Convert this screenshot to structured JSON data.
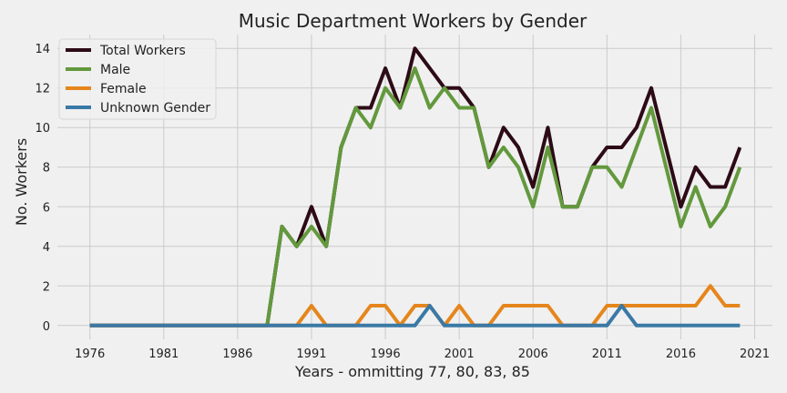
{
  "chart_data": {
    "type": "line",
    "title": "Music Department Workers by Gender",
    "xlabel": "Years - ommitting 77, 80, 83, 85",
    "ylabel": "No. Workers",
    "xlim": [
      1973.8,
      2022.2
    ],
    "ylim": [
      -0.7,
      14.7
    ],
    "xticks": [
      1976,
      1981,
      1986,
      1991,
      1996,
      2001,
      2006,
      2011,
      2016,
      2021
    ],
    "yticks": [
      0,
      2,
      4,
      6,
      8,
      10,
      12,
      14
    ],
    "grid": true,
    "legend_position": "top-left",
    "x": [
      1976,
      1977,
      1978,
      1979,
      1980,
      1981,
      1982,
      1983,
      1984,
      1985,
      1986,
      1987,
      1988,
      1989,
      1990,
      1991,
      1992,
      1993,
      1994,
      1995,
      1996,
      1997,
      1998,
      1999,
      2000,
      2001,
      2002,
      2003,
      2004,
      2005,
      2006,
      2007,
      2008,
      2009,
      2010,
      2011,
      2012,
      2013,
      2014,
      2015,
      2016,
      2017,
      2018,
      2019,
      2020
    ],
    "series": [
      {
        "name": "Total Workers",
        "color": "#2d0b16",
        "values": [
          0,
          0,
          0,
          0,
          0,
          0,
          0,
          0,
          0,
          0,
          0,
          0,
          0,
          5,
          4,
          6,
          4,
          9,
          11,
          11,
          13,
          11,
          14,
          13,
          12,
          12,
          11,
          8,
          10,
          9,
          7,
          10,
          6,
          6,
          8,
          9,
          9,
          10,
          12,
          9,
          6,
          8,
          7,
          7,
          9
        ]
      },
      {
        "name": "Male",
        "color": "#63993d",
        "values": [
          0,
          0,
          0,
          0,
          0,
          0,
          0,
          0,
          0,
          0,
          0,
          0,
          0,
          5,
          4,
          5,
          4,
          9,
          11,
          10,
          12,
          11,
          13,
          11,
          12,
          11,
          11,
          8,
          9,
          8,
          6,
          9,
          6,
          6,
          8,
          8,
          7,
          9,
          11,
          8,
          5,
          7,
          5,
          6,
          8
        ]
      },
      {
        "name": "Female",
        "color": "#e5861c",
        "values": [
          0,
          0,
          0,
          0,
          0,
          0,
          0,
          0,
          0,
          0,
          0,
          0,
          0,
          0,
          0,
          1,
          0,
          0,
          0,
          1,
          1,
          0,
          1,
          1,
          0,
          1,
          0,
          0,
          1,
          1,
          1,
          1,
          0,
          0,
          0,
          1,
          1,
          1,
          1,
          1,
          1,
          1,
          2,
          1,
          1
        ]
      },
      {
        "name": "Unknown Gender",
        "color": "#3a79a6",
        "values": [
          0,
          0,
          0,
          0,
          0,
          0,
          0,
          0,
          0,
          0,
          0,
          0,
          0,
          0,
          0,
          0,
          0,
          0,
          0,
          0,
          0,
          0,
          0,
          1,
          0,
          0,
          0,
          0,
          0,
          0,
          0,
          0,
          0,
          0,
          0,
          0,
          1,
          0,
          0,
          0,
          0,
          0,
          0,
          0,
          0
        ]
      }
    ]
  }
}
